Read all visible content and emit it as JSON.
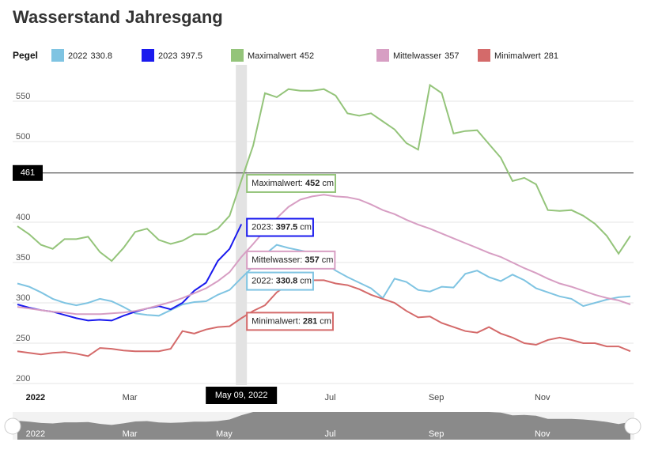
{
  "chart_data": {
    "type": "line",
    "title": "Wasserstand Jahresgang",
    "legend_title": "Pegel",
    "unit": "cm",
    "categories": [
      null,
      "2022",
      null,
      null,
      null,
      null,
      null,
      null,
      null,
      "Mar",
      null,
      null,
      null,
      null,
      null,
      null,
      null,
      "May",
      null,
      null,
      null,
      null,
      null,
      null,
      null,
      null,
      "Jul",
      null,
      null,
      null,
      null,
      null,
      null,
      null,
      null,
      "Sep",
      null,
      null,
      null,
      null,
      null,
      null,
      null,
      null,
      "Nov",
      null,
      null,
      null,
      null,
      null,
      null,
      null,
      null
    ],
    "series": [
      {
        "name": "2022",
        "color": "#7fc4e2",
        "values": [
          324,
          320,
          313,
          305,
          300,
          297,
          300,
          305,
          302,
          295,
          287,
          285,
          284,
          291,
          298,
          301,
          302,
          310,
          316,
          330.8,
          345,
          360,
          372,
          368,
          365,
          362,
          350,
          340,
          332,
          325,
          318,
          306,
          330,
          326,
          316,
          314,
          320,
          319,
          336,
          340,
          332,
          327,
          335,
          328,
          318,
          313,
          308,
          305,
          296,
          300,
          304,
          307,
          308
        ]
      },
      {
        "name": "2023",
        "color": "#1a1aee",
        "values": [
          298,
          294,
          291,
          289,
          285,
          281,
          278,
          279,
          278,
          284,
          289,
          293,
          296,
          292,
          300,
          315,
          325,
          352,
          367,
          397.5,
          null,
          null,
          null,
          null,
          null,
          null,
          null,
          null,
          null,
          null,
          null,
          null,
          null,
          null,
          null,
          null,
          null,
          null,
          null,
          null,
          null,
          null,
          null,
          null,
          null,
          null,
          null,
          null,
          null,
          null,
          null,
          null,
          null
        ]
      },
      {
        "name": "Maximalwert",
        "color": "#94c47a",
        "values": [
          395,
          385,
          372,
          367,
          379,
          379,
          382,
          363,
          352,
          368,
          388,
          392,
          378,
          373,
          377,
          385,
          385,
          392,
          408,
          452,
          495,
          560,
          555,
          565,
          563,
          563,
          565,
          557,
          535,
          532,
          535,
          525,
          515,
          498,
          490,
          570,
          560,
          510,
          513,
          514,
          497,
          480,
          451,
          455,
          447,
          415,
          414,
          415,
          408,
          398,
          383,
          361,
          383
        ]
      },
      {
        "name": "Mittelwasser",
        "color": "#d79ec3",
        "values": [
          295,
          293,
          291,
          289,
          288,
          286,
          286,
          286,
          287,
          288,
          290,
          293,
          297,
          301,
          306,
          312,
          318,
          327,
          338,
          357,
          373,
          390,
          405,
          419,
          428,
          432,
          434,
          432,
          431,
          428,
          422,
          415,
          410,
          403,
          397,
          392,
          386,
          380,
          374,
          368,
          362,
          357,
          350,
          343,
          337,
          330,
          324,
          320,
          315,
          310,
          306,
          303,
          298
        ]
      },
      {
        "name": "Minimalwert",
        "color": "#d46a6a",
        "values": [
          240,
          238,
          236,
          238,
          239,
          237,
          234,
          244,
          243,
          241,
          240,
          240,
          240,
          243,
          265,
          262,
          267,
          270,
          271,
          281,
          290,
          297,
          313,
          323,
          326,
          328,
          328,
          324,
          322,
          317,
          310,
          305,
          300,
          290,
          282,
          283,
          275,
          270,
          265,
          263,
          270,
          262,
          257,
          250,
          248,
          254,
          257,
          254,
          250,
          250,
          246,
          246,
          240
        ]
      }
    ],
    "ylim": [
      200,
      600
    ],
    "yticks": [
      200,
      250,
      300,
      350,
      400,
      500,
      550
    ],
    "grid": true,
    "plot_line": 461,
    "crosshair_label": "May 09, 2022"
  }
}
